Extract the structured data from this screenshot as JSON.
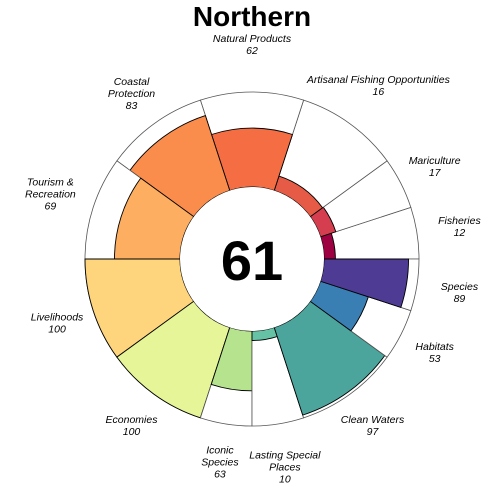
{
  "chart_data": {
    "type": "flower",
    "title": "Northern",
    "center_score": "61",
    "score_max": 100,
    "petals": [
      {
        "label": "Fisheries",
        "score": "12",
        "value": 12,
        "color": "#9e0142",
        "weight": 1
      },
      {
        "label": "Mariculture",
        "score": "17",
        "value": 17,
        "color": "#d53e4f",
        "weight": 1
      },
      {
        "label": "Artisanal Fishing Opportunities",
        "score": "16",
        "value": 16,
        "color": "#e65b46",
        "weight": 2
      },
      {
        "label": "Natural Products",
        "score": "62",
        "value": 62,
        "color": "#f46d43",
        "weight": 2
      },
      {
        "label": "Coastal Protection",
        "score": "83",
        "value": 83,
        "color": "#fb8d4c",
        "weight": 2
      },
      {
        "label": "Tourism & Recreation",
        "score": "69",
        "value": 69,
        "color": "#fdae61",
        "weight": 2
      },
      {
        "label": "Livelihoods",
        "score": "100",
        "value": 100,
        "color": "#fed47d",
        "weight": 2
      },
      {
        "label": "Economies",
        "score": "100",
        "value": 100,
        "color": "#e6f598",
        "weight": 2
      },
      {
        "label": "Iconic Species",
        "score": "63",
        "value": 63,
        "color": "#b6e48e",
        "weight": 1
      },
      {
        "label": "Lasting Special Places",
        "score": "10",
        "value": 10,
        "color": "#66c2a5",
        "weight": 1
      },
      {
        "label": "Clean Waters",
        "score": "97",
        "value": 97,
        "color": "#4ca59c",
        "weight": 2
      },
      {
        "label": "Habitats",
        "score": "53",
        "value": 53,
        "color": "#3a7fb4",
        "weight": 1
      },
      {
        "label": "Species",
        "score": "89",
        "value": 89,
        "color": "#4e3b94",
        "weight": 1
      }
    ]
  }
}
